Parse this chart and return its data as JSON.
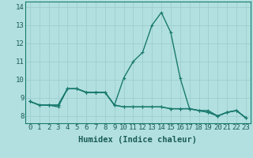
{
  "xlabel": "Humidex (Indice chaleur)",
  "background_color": "#b2e0e0",
  "grid_color": "#9ecece",
  "line_color": "#1a7a6e",
  "x_values": [
    0,
    1,
    2,
    3,
    4,
    5,
    6,
    7,
    8,
    9,
    10,
    11,
    12,
    13,
    14,
    15,
    16,
    17,
    18,
    19,
    20,
    21,
    22,
    23
  ],
  "series": [
    [
      8.8,
      8.6,
      8.6,
      8.6,
      9.5,
      9.5,
      9.3,
      9.3,
      9.3,
      8.6,
      8.5,
      8.5,
      8.5,
      8.5,
      8.5,
      8.4,
      8.4,
      8.4,
      8.3,
      8.2,
      8.0,
      8.2,
      8.3,
      7.9
    ],
    [
      8.8,
      8.6,
      8.6,
      8.5,
      9.5,
      9.5,
      9.3,
      9.3,
      9.3,
      8.6,
      8.5,
      8.5,
      8.5,
      8.5,
      8.5,
      8.4,
      8.4,
      8.4,
      8.3,
      8.2,
      8.0,
      8.2,
      8.3,
      7.9
    ],
    [
      8.8,
      8.6,
      8.6,
      8.6,
      9.5,
      9.5,
      9.3,
      9.3,
      9.3,
      8.6,
      10.1,
      11.0,
      11.5,
      13.0,
      13.7,
      12.6,
      10.1,
      8.4,
      8.3,
      8.3,
      8.0,
      8.2,
      8.3,
      7.9
    ]
  ],
  "ylim": [
    7.6,
    14.3
  ],
  "xlim": [
    -0.5,
    23.5
  ],
  "yticks": [
    8,
    9,
    10,
    11,
    12,
    13,
    14
  ],
  "xticks": [
    0,
    1,
    2,
    3,
    4,
    5,
    6,
    7,
    8,
    9,
    10,
    11,
    12,
    13,
    14,
    15,
    16,
    17,
    18,
    19,
    20,
    21,
    22,
    23
  ],
  "marker": "+",
  "marker_size": 3,
  "linewidth": 1.0,
  "font_color": "#1a5c55",
  "font_size": 6.5,
  "xlabel_fontsize": 7.5
}
